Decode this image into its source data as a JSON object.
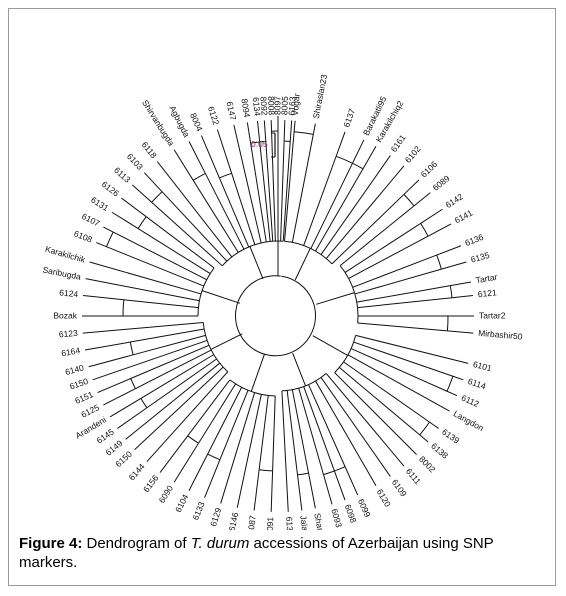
{
  "figure": {
    "caption_label": "Figure 4:",
    "caption_pre": " Dendrogram of ",
    "caption_italic": "T. durum",
    "caption_post": " accessions of Azerbaijan using SNP markers."
  },
  "scale_bar": {
    "label": "0.05",
    "color": "#8b2a6e"
  },
  "leaves": [
    {
      "label": "Vugar",
      "angle": -85
    },
    {
      "label": "Shiraslan23",
      "angle": -79
    },
    {
      "label": "6137",
      "angle": -70
    },
    {
      "label": "Barakatli95",
      "angle": -64
    },
    {
      "label": "Karakilchiq2",
      "angle": -60
    },
    {
      "label": "6161",
      "angle": -55
    },
    {
      "label": "6102",
      "angle": -50
    },
    {
      "label": "6106",
      "angle": -44
    },
    {
      "label": "6089",
      "angle": -39
    },
    {
      "label": "6142",
      "angle": -33
    },
    {
      "label": "6141",
      "angle": -28
    },
    {
      "label": "6136",
      "angle": -21
    },
    {
      "label": "6135",
      "angle": -16
    },
    {
      "label": "Tartar",
      "angle": -10
    },
    {
      "label": "6121",
      "angle": -6
    },
    {
      "label": "Tartar2",
      "angle": 0
    },
    {
      "label": "Mirbashir50",
      "angle": 5
    },
    {
      "label": "6101",
      "angle": 14
    },
    {
      "label": "6114",
      "angle": 19
    },
    {
      "label": "6112",
      "angle": 24
    },
    {
      "label": "Langdon",
      "angle": 29
    },
    {
      "label": "6139",
      "angle": 35
    },
    {
      "label": "6138",
      "angle": 40
    },
    {
      "label": "8002",
      "angle": 45
    },
    {
      "label": "6111",
      "angle": 50
    },
    {
      "label": "6109",
      "angle": 55
    },
    {
      "label": "6120",
      "angle": 60
    },
    {
      "label": "6099",
      "angle": 66
    },
    {
      "label": "6098",
      "angle": 70
    },
    {
      "label": "6093",
      "angle": 74
    },
    {
      "label": "Sharq",
      "angle": 79
    },
    {
      "label": "Jalal",
      "angle": 83
    },
    {
      "label": "6132",
      "angle": 87
    },
    {
      "label": "6091",
      "angle": 92
    },
    {
      "label": "6087",
      "angle": 97
    },
    {
      "label": "6146",
      "angle": 102
    },
    {
      "label": "6129",
      "angle": 107
    },
    {
      "label": "6133",
      "angle": 112
    },
    {
      "label": "6104",
      "angle": 117
    },
    {
      "label": "6090",
      "angle": 122
    },
    {
      "label": "6156",
      "angle": 127
    },
    {
      "label": "6144",
      "angle": 132
    },
    {
      "label": "6150",
      "angle": 137
    },
    {
      "label": "6149",
      "angle": 141
    },
    {
      "label": "6145",
      "angle": 145
    },
    {
      "label": "Arandeni",
      "angle": 149
    },
    {
      "label": "6125",
      "angle": 153
    },
    {
      "label": "6151",
      "angle": 157
    },
    {
      "label": "6150",
      "angle": 161
    },
    {
      "label": "6140",
      "angle": 165
    },
    {
      "label": "6164",
      "angle": 170
    },
    {
      "label": "6123",
      "angle": 175
    },
    {
      "label": "Bozak",
      "angle": 180
    },
    {
      "label": "6124",
      "angle": 186
    },
    {
      "label": "Saribugda",
      "angle": 191
    },
    {
      "label": "Karakilchik",
      "angle": 196
    },
    {
      "label": "6108",
      "angle": 202
    },
    {
      "label": "6107",
      "angle": 207
    },
    {
      "label": "6131",
      "angle": 212
    },
    {
      "label": "6126",
      "angle": 217
    },
    {
      "label": "6113",
      "angle": 222
    },
    {
      "label": "6103",
      "angle": 227
    },
    {
      "label": "6118",
      "angle": 232
    },
    {
      "label": "Shirvanbugda",
      "angle": 238
    },
    {
      "label": "Agbugda",
      "angle": 243
    },
    {
      "label": "8004",
      "angle": 247
    },
    {
      "label": "6122",
      "angle": 252
    },
    {
      "label": "6147",
      "angle": 257
    },
    {
      "label": "8094",
      "angle": 261
    },
    {
      "label": "6134",
      "angle": 264
    },
    {
      "label": "8092",
      "angle": 266
    },
    {
      "label": "8008",
      "angle": 268
    },
    {
      "label": "8097",
      "angle": 270
    },
    {
      "label": "8005",
      "angle": 272
    },
    {
      "label": "6163",
      "angle": 274
    }
  ],
  "clusters": [
    {
      "from": "Vugar",
      "to": "Shiraslan23",
      "radius": 185
    },
    {
      "from": "6137",
      "to": "Karakilchiq2",
      "radius": 170
    },
    {
      "from": "6106",
      "to": "6089",
      "radius": 175
    },
    {
      "from": "6142",
      "to": "6141",
      "radius": 170
    },
    {
      "from": "6136",
      "to": "6135",
      "radius": 170
    },
    {
      "from": "Tartar",
      "to": "6121",
      "radius": 175
    },
    {
      "from": "Tartar2",
      "to": "Mirbashir50",
      "radius": 170
    },
    {
      "from": "6114",
      "to": "6112",
      "radius": 185
    },
    {
      "from": "6139",
      "to": "6138",
      "radius": 185
    },
    {
      "from": "6099",
      "to": "6093",
      "radius": 165
    },
    {
      "from": "Sharq",
      "to": "Jalal",
      "radius": 160
    },
    {
      "from": "6091",
      "to": "6087",
      "radius": 155
    },
    {
      "from": "6133",
      "to": "6104",
      "radius": 155
    },
    {
      "from": "6090",
      "to": "6156",
      "radius": 150
    },
    {
      "from": "6145",
      "to": "Arandeni",
      "radius": 160
    },
    {
      "from": "6125",
      "to": "6151",
      "radius": 160
    },
    {
      "from": "6140",
      "to": "6164",
      "radius": 150
    },
    {
      "from": "Bozak",
      "to": "6124",
      "radius": 155
    },
    {
      "from": "6108",
      "to": "6107",
      "radius": 185
    },
    {
      "from": "6131",
      "to": "6126",
      "radius": 165
    },
    {
      "from": "6113",
      "to": "6103",
      "radius": 170
    },
    {
      "from": "Shirvanbugda",
      "to": "Agbugda",
      "radius": 160
    },
    {
      "from": "8004",
      "to": "6122",
      "radius": 150
    },
    {
      "from": "8094",
      "to": "8092",
      "radius": 175
    },
    {
      "from": "8008",
      "to": "8097",
      "radius": 185
    },
    {
      "from": "8005",
      "to": "6163",
      "radius": 175
    }
  ]
}
